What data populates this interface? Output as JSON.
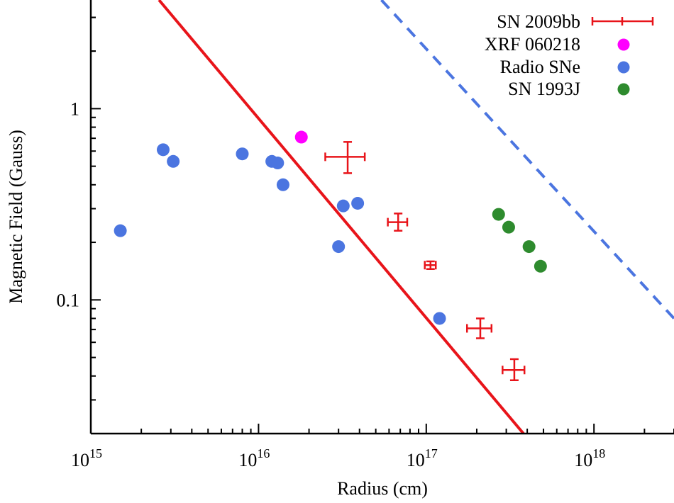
{
  "chart_data": {
    "type": "scatter",
    "title": "",
    "xlabel": "Radius (cm)",
    "ylabel": "Magnetic Field (Gauss)",
    "x_scale": "log",
    "y_scale": "log",
    "xlim": [
      1000000000000000.0,
      3e+18
    ],
    "ylim": [
      0.02,
      3.7
    ],
    "x_ticks": [
      {
        "value": 1000000000000000.0,
        "base": "10",
        "exp": "15"
      },
      {
        "value": 1e+16,
        "base": "10",
        "exp": "16"
      },
      {
        "value": 1e+17,
        "base": "10",
        "exp": "17"
      },
      {
        "value": 1e+18,
        "base": "10",
        "exp": "18"
      }
    ],
    "y_ticks": [
      {
        "value": 0.1,
        "label": "0.1"
      },
      {
        "value": 1,
        "label": "1"
      }
    ],
    "grid": false,
    "legend_position": "top-right",
    "series": [
      {
        "name": "SN 2009bb",
        "kind": "errorbar",
        "color": "#e8141a",
        "points": [
          {
            "x": 3.4e+16,
            "y": 0.56,
            "xerr": [
              9000000000000000.0,
              9000000000000000.0
            ],
            "yerr": [
              0.1,
              0.11
            ]
          },
          {
            "x": 6.8e+16,
            "y": 0.255,
            "xerr": [
              9000000000000000.0,
              9000000000000000.0
            ],
            "yerr": [
              0.025,
              0.028
            ]
          },
          {
            "x": 1.06e+17,
            "y": 0.152,
            "xerr": [
              8000000000000000.0,
              8000000000000000.0
            ],
            "yerr": [
              0.007,
              0.007
            ]
          },
          {
            "x": 2.1e+17,
            "y": 0.071,
            "xerr": [
              3.5e+16,
              3.5e+16
            ],
            "yerr": [
              0.008,
              0.009
            ]
          },
          {
            "x": 3.35e+17,
            "y": 0.043,
            "xerr": [
              5e+16,
              5e+16
            ],
            "yerr": [
              0.005,
              0.006
            ]
          }
        ]
      },
      {
        "name": "XRF 060218",
        "kind": "points",
        "color": "#ff00ff",
        "points": [
          {
            "x": 1.8e+16,
            "y": 0.71
          }
        ]
      },
      {
        "name": "Radio SNe",
        "kind": "points",
        "color": "#4b75e0",
        "points": [
          {
            "x": 1500000000000000.0,
            "y": 0.23
          },
          {
            "x": 2700000000000000.0,
            "y": 0.61
          },
          {
            "x": 3100000000000000.0,
            "y": 0.53
          },
          {
            "x": 8000000000000000.0,
            "y": 0.58
          },
          {
            "x": 1.2e+16,
            "y": 0.53
          },
          {
            "x": 1.3e+16,
            "y": 0.52
          },
          {
            "x": 1.4e+16,
            "y": 0.4
          },
          {
            "x": 3e+16,
            "y": 0.19
          },
          {
            "x": 3.2e+16,
            "y": 0.31
          },
          {
            "x": 3.9e+16,
            "y": 0.32
          },
          {
            "x": 1.2e+17,
            "y": 0.08
          }
        ]
      },
      {
        "name": "SN 1993J",
        "kind": "points",
        "color": "#2e8b2e",
        "points": [
          {
            "x": 2.7e+17,
            "y": 0.28
          },
          {
            "x": 3.1e+17,
            "y": 0.24
          },
          {
            "x": 4.1e+17,
            "y": 0.19
          },
          {
            "x": 4.8e+17,
            "y": 0.15
          }
        ]
      }
    ],
    "lines": [
      {
        "style": "solid",
        "color": "#e8141a",
        "x": [
          2550000000000000.0,
          3.8e+17
        ],
        "y": [
          3.7,
          0.02
        ]
      },
      {
        "style": "dashed",
        "color": "#4b75e0",
        "x": [
          5.4e+16,
          3e+18
        ],
        "y": [
          3.7,
          0.08
        ]
      }
    ]
  }
}
